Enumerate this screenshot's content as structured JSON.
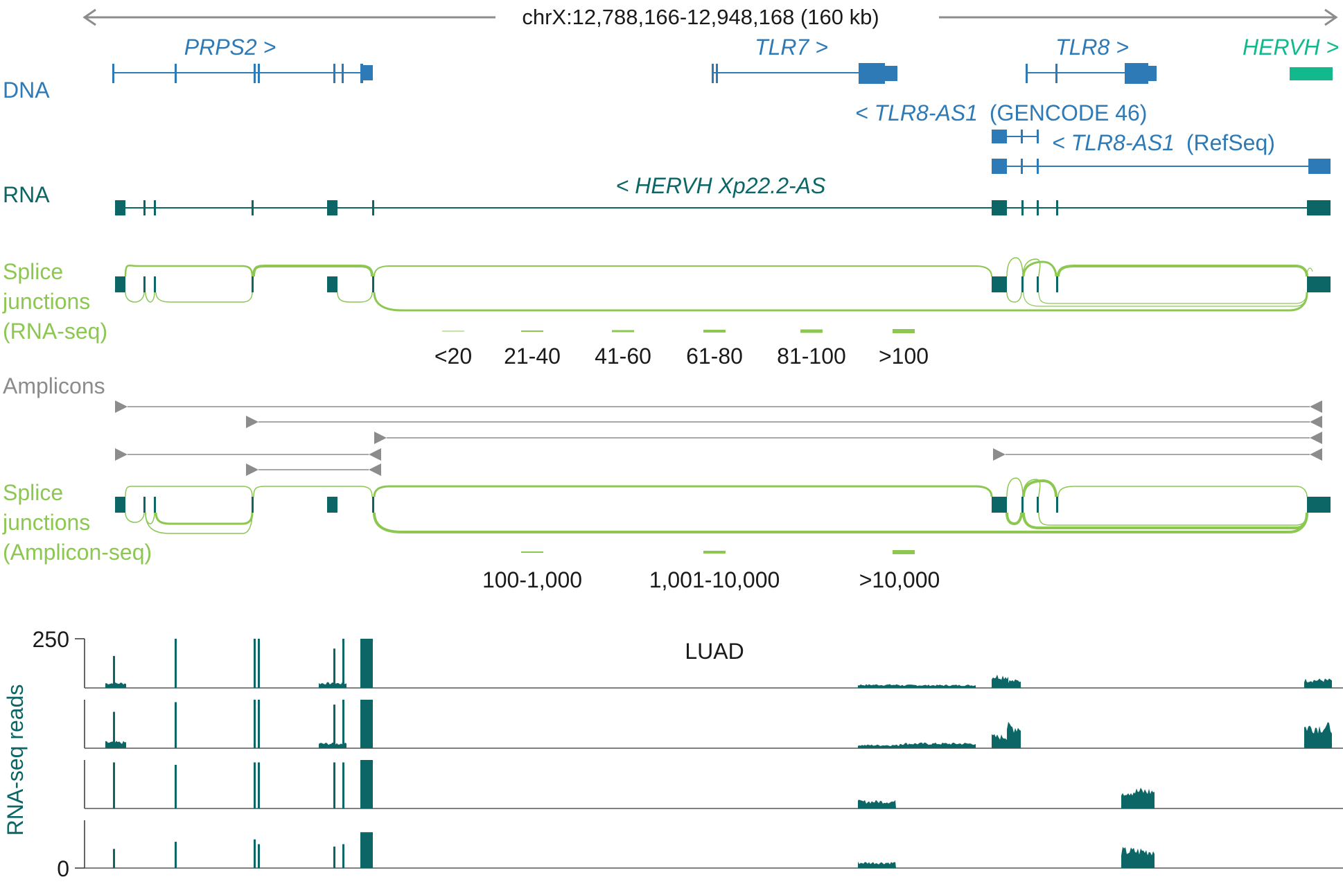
{
  "colors": {
    "dna": "#2e7ab6",
    "rna": "#0b6665",
    "splice": "#8cc751",
    "grey": "#8c8c8c",
    "hervh": "#12b98c",
    "text": "#1a1a1a"
  },
  "header": {
    "locus": "chrX:12,788,166-12,948,168 (160 kb)"
  },
  "tracks": {
    "dna_label": "DNA",
    "rna_label": "RNA",
    "splice_rnaseq_label": [
      "Splice",
      "junctions",
      "(RNA-seq)"
    ],
    "amplicons_label": "Amplicons",
    "splice_ampseq_label": [
      "Splice",
      "junctions",
      "(Amplicon-seq)"
    ]
  },
  "genes": {
    "prps2": "PRPS2 >",
    "tlr7": "TLR7 >",
    "tlr8": "TLR8 >",
    "hervh": "HERVH >",
    "tlr8as1_gencode": {
      "name": "< TLR8-AS1",
      "source": "(GENCODE 46)"
    },
    "tlr8as1_refseq": {
      "name": "< TLR8-AS1",
      "source": "(RefSeq)"
    },
    "hervh_as": "< HERVH Xp22.2-AS"
  },
  "legend_rnaseq": [
    "<20",
    "21-40",
    "41-60",
    "61-80",
    "81-100",
    ">100"
  ],
  "legend_ampseq": [
    "100-1,000",
    "1,001-10,000",
    ">10,000"
  ],
  "coverage": {
    "title": "LUAD",
    "ylabel": "RNA-seq reads",
    "ymax_label": "250",
    "ymin_label": "0",
    "ymax": 250,
    "n_samples": 4
  }
}
